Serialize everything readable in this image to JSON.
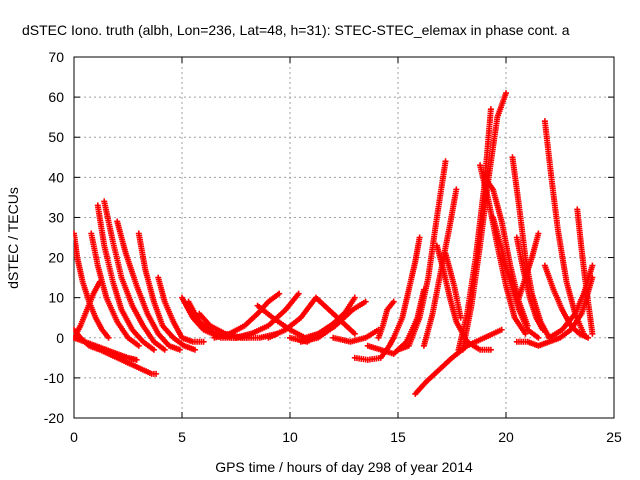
{
  "chart_data": {
    "type": "scatter",
    "title": "dSTEC Iono. truth (albh, Lon=236, Lat=48, h=31): STEC-STEC_elemax in phase cont. a",
    "xlabel": "GPS time / hours of day 298 of year 2014",
    "ylabel": "dSTEC  / TECUs",
    "xlim": [
      0,
      25
    ],
    "ylim": [
      -20,
      70
    ],
    "xticks": [
      0,
      5,
      10,
      15,
      20,
      25
    ],
    "yticks": [
      -20,
      -10,
      0,
      10,
      20,
      30,
      40,
      50,
      60,
      70
    ],
    "grid": true,
    "marker": "+",
    "color": "#ff0000",
    "series": [
      {
        "x": [
          0.0,
          0.3,
          0.7,
          1.2,
          1.8,
          2.4,
          3.0,
          3.6,
          3.8
        ],
        "y": [
          2,
          0,
          -2,
          -3,
          -4.5,
          -6,
          -7.5,
          -9,
          -9
        ]
      },
      {
        "x": [
          0.0,
          0.5,
          1.0,
          1.5,
          2.0,
          2.5,
          2.9
        ],
        "y": [
          0,
          -1,
          -2,
          -3,
          -4,
          -5,
          -5.5
        ]
      },
      {
        "x": [
          0.0,
          0.15,
          0.4,
          0.7,
          1.0,
          1.3,
          1.6
        ],
        "y": [
          26,
          20,
          14,
          9,
          5,
          2,
          0
        ]
      },
      {
        "x": [
          0.0,
          0.3,
          0.6,
          0.9,
          1.2
        ],
        "y": [
          0,
          3,
          7,
          11,
          14
        ]
      },
      {
        "x": [
          0.8,
          1.1,
          1.5,
          2.0,
          2.5,
          3.0
        ],
        "y": [
          26,
          18,
          10,
          4,
          0,
          -2
        ]
      },
      {
        "x": [
          1.1,
          1.4,
          1.8,
          2.2,
          2.7,
          3.2,
          3.7
        ],
        "y": [
          33,
          23,
          14,
          7,
          2,
          -1,
          -3
        ]
      },
      {
        "x": [
          1.4,
          1.8,
          2.2,
          2.7,
          3.2,
          3.7,
          4.2
        ],
        "y": [
          34,
          24,
          15,
          8,
          3,
          -1,
          -3
        ]
      },
      {
        "x": [
          2.0,
          2.4,
          2.9,
          3.4,
          3.9,
          4.4,
          4.9
        ],
        "y": [
          29,
          21,
          13,
          6,
          1,
          -2,
          -3
        ]
      },
      {
        "x": [
          3.0,
          3.3,
          3.7,
          4.1,
          4.6,
          5.1,
          5.6
        ],
        "y": [
          26,
          17,
          9,
          3,
          0,
          -2,
          -3
        ]
      },
      {
        "x": [
          3.9,
          4.2,
          4.6,
          5.0,
          5.5,
          6.0
        ],
        "y": [
          15,
          9,
          4,
          0,
          -1,
          -1
        ]
      },
      {
        "x": [
          5.0,
          5.5,
          6.0,
          6.8,
          7.5,
          8.2
        ],
        "y": [
          10,
          5,
          2,
          0,
          0,
          1
        ]
      },
      {
        "x": [
          5.3,
          5.8,
          6.5,
          7.3,
          8.0
        ],
        "y": [
          9,
          4,
          1,
          0,
          0
        ]
      },
      {
        "x": [
          5.8,
          6.3,
          7.0,
          7.8,
          8.6,
          9.4
        ],
        "y": [
          6,
          3,
          1,
          0,
          0,
          1
        ]
      },
      {
        "x": [
          6.5,
          7.2,
          7.9,
          8.5,
          9.0,
          9.5
        ],
        "y": [
          0,
          1,
          3,
          6,
          9,
          11
        ]
      },
      {
        "x": [
          7.5,
          8.2,
          9.0,
          9.8,
          10.4
        ],
        "y": [
          0,
          1,
          3,
          7,
          11
        ]
      },
      {
        "x": [
          8.5,
          9.2,
          10.0,
          10.7,
          11.3,
          11.9,
          12.5
        ],
        "y": [
          8,
          5,
          2,
          0,
          1,
          3,
          6
        ]
      },
      {
        "x": [
          9.0,
          9.8,
          10.5,
          11.2,
          11.8,
          12.4,
          13.0
        ],
        "y": [
          0,
          2,
          5,
          10,
          7,
          4,
          1
        ]
      },
      {
        "x": [
          10.0,
          10.8,
          11.6,
          12.4,
          13.0
        ],
        "y": [
          0,
          -1,
          2,
          5,
          10
        ]
      },
      {
        "x": [
          10.5,
          11.3,
          12.1,
          12.9,
          13.5
        ],
        "y": [
          -1,
          0,
          3,
          7,
          9
        ]
      },
      {
        "x": [
          12.0,
          12.8,
          13.5,
          14.1
        ],
        "y": [
          0,
          -1,
          0,
          2
        ]
      },
      {
        "x": [
          13.0,
          13.6,
          14.2,
          14.6,
          14.8
        ],
        "y": [
          -5,
          -5.5,
          -5,
          -2,
          0
        ]
      },
      {
        "x": [
          13.6,
          14.2,
          14.8,
          15.4,
          15.9,
          16.2
        ],
        "y": [
          -2,
          -3,
          -4,
          -1,
          5,
          12
        ]
      },
      {
        "x": [
          14.1,
          14.3,
          14.5,
          14.8
        ],
        "y": [
          0,
          3,
          7,
          9
        ]
      },
      {
        "x": [
          14.8,
          15.2,
          15.5,
          15.8,
          16.0
        ],
        "y": [
          0,
          5,
          12,
          19,
          25
        ]
      },
      {
        "x": [
          15.8,
          16.3,
          16.9,
          17.5,
          18.2,
          19.0,
          19.8
        ],
        "y": [
          -14,
          -11,
          -8,
          -5,
          -2,
          0,
          2
        ]
      },
      {
        "x": [
          15.0,
          15.5,
          16.0,
          16.4,
          16.8,
          17.2
        ],
        "y": [
          -3,
          -2,
          5,
          15,
          30,
          44
        ]
      },
      {
        "x": [
          16.2,
          16.6,
          17.0,
          17.4,
          17.7
        ],
        "y": [
          -2,
          6,
          17,
          28,
          37
        ]
      },
      {
        "x": [
          16.8,
          17.1,
          17.4,
          17.7,
          18.2,
          18.8,
          19.3
        ],
        "y": [
          23,
          17,
          10,
          4,
          -1,
          -3,
          -3
        ]
      },
      {
        "x": [
          17.2,
          17.6,
          17.9
        ],
        "y": [
          21,
          13,
          5
        ]
      },
      {
        "x": [
          17.8,
          18.2,
          18.6,
          19.0,
          19.3
        ],
        "y": [
          -3,
          6,
          20,
          38,
          57
        ]
      },
      {
        "x": [
          18.0,
          18.4,
          18.8,
          19.2,
          19.6,
          20.0
        ],
        "y": [
          -3,
          8,
          23,
          40,
          55,
          61
        ]
      },
      {
        "x": [
          18.8,
          19.2,
          19.6,
          20.0,
          20.4,
          20.9
        ],
        "y": [
          43,
          34,
          23,
          13,
          5,
          1
        ]
      },
      {
        "x": [
          19.0,
          19.4,
          19.8,
          20.2,
          20.6,
          21.0
        ],
        "y": [
          40,
          37,
          29,
          18,
          9,
          3
        ]
      },
      {
        "x": [
          19.4,
          19.8,
          20.2,
          20.6,
          21.0,
          21.5
        ],
        "y": [
          30,
          22,
          14,
          7,
          2,
          0
        ]
      },
      {
        "x": [
          20.3,
          20.6,
          20.9,
          21.2,
          21.6,
          22.0
        ],
        "y": [
          45,
          33,
          20,
          11,
          4,
          0
        ]
      },
      {
        "x": [
          20.5,
          20.8,
          21.1,
          21.4,
          21.7
        ],
        "y": [
          25,
          17,
          10,
          5,
          2
        ]
      },
      {
        "x": [
          20.6,
          20.9,
          21.2,
          21.5
        ],
        "y": [
          10,
          15,
          20,
          26
        ]
      },
      {
        "x": [
          21.8,
          22.1,
          22.4,
          22.8,
          23.2,
          23.6
        ],
        "y": [
          54,
          40,
          27,
          14,
          6,
          1
        ]
      },
      {
        "x": [
          21.8,
          22.2,
          22.6,
          23.0,
          23.4,
          23.8
        ],
        "y": [
          18,
          12,
          7,
          3,
          1,
          0
        ]
      },
      {
        "x": [
          23.3,
          23.5,
          23.7,
          23.9,
          24.0
        ],
        "y": [
          32,
          22,
          13,
          5,
          1
        ]
      },
      {
        "x": [
          22.0,
          22.6,
          23.2,
          23.6,
          24.0
        ],
        "y": [
          0,
          2,
          6,
          11,
          18
        ]
      },
      {
        "x": [
          20.5,
          21.0,
          21.5,
          22.0,
          22.5,
          23.0,
          23.5,
          24.0
        ],
        "y": [
          -1,
          -1,
          -2,
          -1,
          0,
          2,
          6,
          15
        ]
      }
    ]
  }
}
